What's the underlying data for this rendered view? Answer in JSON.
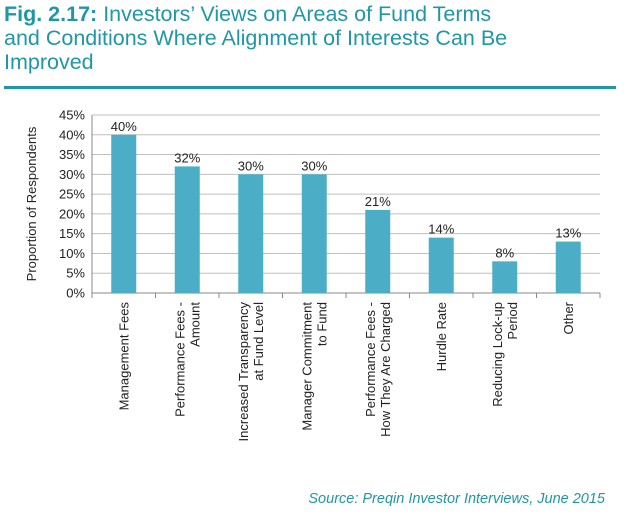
{
  "title": {
    "fig_number": "Fig. 2.17:",
    "text": "Investors’ Views on Areas of Fund Terms and Conditions Where Alignment of Interests Can Be Improved",
    "lines": [
      "Investors’ Views on Areas of Fund Terms",
      "and Conditions Where Alignment of Interests Can Be",
      "Improved"
    ]
  },
  "source": "Source: Preqin Investor Interviews, June 2015",
  "colors": {
    "accent": "#1f97a6",
    "bar": "#4baec6",
    "grid": "#bfbfbf"
  },
  "chart_data": {
    "type": "bar",
    "ylabel": "Proportion of Respondents",
    "ylim": [
      0,
      45
    ],
    "ytick_step": 5,
    "ytick_labels": [
      "0%",
      "5%",
      "10%",
      "15%",
      "20%",
      "25%",
      "30%",
      "35%",
      "40%",
      "45%"
    ],
    "grid": true,
    "categories": [
      [
        "Management Fees"
      ],
      [
        "Performance Fees -",
        "Amount"
      ],
      [
        "Increased Transparency",
        "at Fund Level"
      ],
      [
        "Manager Commitment",
        "to Fund"
      ],
      [
        "Performance Fees -",
        "How They Are Charged"
      ],
      [
        "Hurdle Rate"
      ],
      [
        "Reducing Lock-up",
        "Period"
      ],
      [
        "Other"
      ]
    ],
    "values": [
      40,
      32,
      30,
      30,
      21,
      14,
      8,
      13
    ],
    "data_labels": [
      "40%",
      "32%",
      "30%",
      "30%",
      "21%",
      "14%",
      "8%",
      "13%"
    ]
  }
}
